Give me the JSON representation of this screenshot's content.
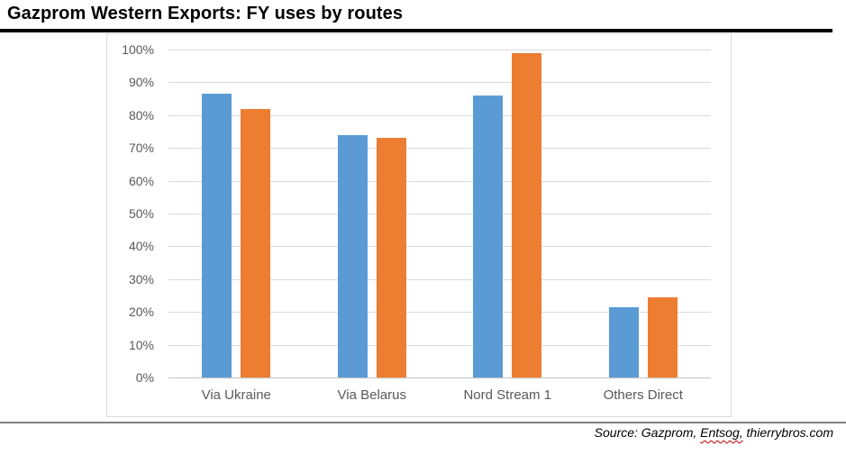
{
  "document": {
    "title": "Gazprom Western Exports: FY uses by routes"
  },
  "source": {
    "prefix": "Source: Gazprom, ",
    "misspelled_word": "Entsog,",
    "suffix": " thierrybros.com",
    "squiggle_color": "#c00000"
  },
  "chart_data": {
    "type": "bar",
    "title": "Gazprom Western Exports: FY uses by routes",
    "categories": [
      "Via Ukraine",
      "Via Belarus",
      "Nord Stream 1",
      "Others Direct"
    ],
    "series": [
      {
        "name": "blue-series",
        "color": "#5B9BD5",
        "values": [
          86.5,
          74,
          86,
          21.5
        ]
      },
      {
        "name": "orange-series",
        "color": "#ED7D31",
        "values": [
          82,
          73,
          99,
          24.5
        ]
      }
    ],
    "xlabel": "",
    "ylabel": "",
    "ylim": [
      0,
      100
    ],
    "yticks": [
      "0%",
      "10%",
      "20%",
      "30%",
      "40%",
      "50%",
      "60%",
      "70%",
      "80%",
      "90%",
      "100%"
    ],
    "grid": true,
    "legend": false,
    "colors": {
      "gridline": "#d9d9d9",
      "baseline": "#c3c3c3",
      "axis_text": "#595959",
      "frame_border": "#d9d9d9"
    }
  }
}
